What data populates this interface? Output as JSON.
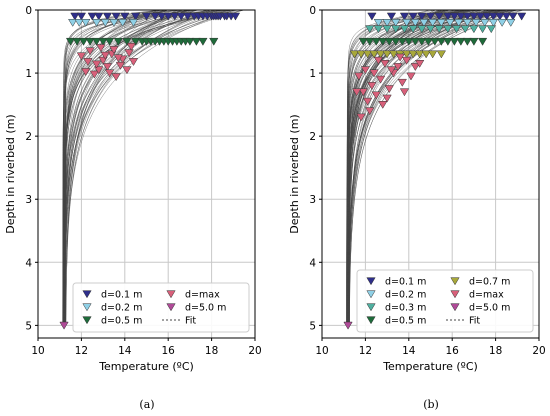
{
  "colors": {
    "d0.1": "#2e2e8a",
    "d0.2": "#8fd0e6",
    "d0.3": "#4fb0a0",
    "d0.5": "#1e6b3a",
    "d0.7": "#a8a83a",
    "dmax": "#d8607a",
    "d5.0": "#b04a98",
    "fit": "#444444",
    "grid": "#c8c8c8"
  },
  "chart_data": [
    {
      "type": "scatter",
      "panel": "(a)",
      "xlabel": "Temperature (ºC)",
      "ylabel": "Depth in riverbed (m)",
      "xlim": [
        10,
        20
      ],
      "ylim": [
        5.2,
        0
      ],
      "xticks": [
        "10",
        "12",
        "14",
        "16",
        "18",
        "20"
      ],
      "yticks": [
        "0",
        "1",
        "2",
        "3",
        "4",
        "5"
      ],
      "grid": true,
      "legend_position": "bottom-right",
      "fit": {
        "name": "Fit",
        "count": 70,
        "deep_temp": 11.2,
        "surface_range": [
          15.5,
          19.6
        ]
      },
      "series": [
        {
          "name": "d=0.1 m",
          "color_key": "d0.1",
          "depth": 0.1,
          "x": [
            11.7,
            12.0,
            12.5,
            12.8,
            13.2,
            13.6,
            14.0,
            14.5,
            15.0,
            15.4,
            15.7,
            16.0,
            16.3,
            16.6,
            16.9,
            17.2,
            17.4,
            17.6,
            17.8,
            18.0,
            18.1,
            18.2,
            18.3,
            18.4,
            18.6,
            18.7,
            18.9,
            19.1
          ]
        },
        {
          "name": "d=0.2 m",
          "color_key": "d0.2",
          "depth": 0.2,
          "x": [
            11.6,
            11.9,
            12.2,
            12.7,
            13.1,
            13.5,
            13.9,
            14.4
          ]
        },
        {
          "name": "d=0.5 m",
          "color_key": "d0.5",
          "depth": 0.5,
          "x": [
            11.5,
            11.8,
            12.1,
            12.4,
            12.7,
            13.0,
            13.3,
            13.7,
            14.1,
            14.5,
            14.8,
            15.0,
            15.2,
            15.4,
            15.6,
            15.8,
            16.0,
            16.2,
            16.4,
            16.6,
            16.8,
            17.0,
            17.3,
            17.6,
            18.1
          ]
        },
        {
          "name": "d=max",
          "color_key": "dmax",
          "points": [
            [
              12.0,
              0.73
            ],
            [
              12.3,
              0.82
            ],
            [
              12.6,
              1.02
            ],
            [
              13.0,
              0.8
            ],
            [
              12.8,
              0.95
            ],
            [
              13.4,
              0.7
            ],
            [
              13.2,
              0.9
            ],
            [
              13.6,
              1.06
            ],
            [
              13.5,
              0.63
            ],
            [
              13.9,
              0.78
            ],
            [
              14.2,
              0.68
            ],
            [
              12.9,
              0.6
            ],
            [
              14.1,
              0.95
            ],
            [
              13.8,
              0.88
            ],
            [
              12.4,
              0.65
            ],
            [
              14.3,
              0.58
            ],
            [
              13.1,
              0.72
            ],
            [
              12.7,
              0.86
            ],
            [
              13.7,
              0.76
            ],
            [
              12.2,
              0.98
            ],
            [
              14.4,
              0.82
            ],
            [
              13.3,
              1.0
            ]
          ]
        },
        {
          "name": "d=5.0 m",
          "color_key": "d5.0",
          "points": [
            [
              11.2,
              5.0
            ]
          ]
        }
      ]
    },
    {
      "type": "scatter",
      "panel": "(b)",
      "xlabel": "Temperature (ºC)",
      "ylabel": "Depth in riverbed (m)",
      "xlim": [
        10,
        20
      ],
      "ylim": [
        5.2,
        0
      ],
      "xticks": [
        "10",
        "12",
        "14",
        "16",
        "18",
        "20"
      ],
      "yticks": [
        "0",
        "1",
        "2",
        "3",
        "4",
        "5"
      ],
      "grid": true,
      "legend_position": "bottom-right",
      "fit": {
        "name": "Fit",
        "count": 90,
        "deep_temp": 11.2,
        "surface_range": [
          15.0,
          19.6
        ]
      },
      "series": [
        {
          "name": "d=0.1 m",
          "color_key": "d0.1",
          "depth": 0.1,
          "x": [
            12.3,
            13.2,
            13.8,
            14.2,
            14.6,
            15.0,
            15.4,
            15.8,
            16.1,
            16.4,
            16.7,
            17.0,
            17.3,
            17.6,
            17.9,
            18.2,
            18.5,
            18.8,
            19.2
          ]
        },
        {
          "name": "d=0.2 m",
          "color_key": "d0.2",
          "depth": 0.2,
          "x": [
            12.6,
            13.0,
            13.4,
            13.9,
            14.3,
            14.7,
            15.1,
            15.5,
            15.9,
            16.3,
            16.7,
            17.1,
            17.5,
            17.9,
            18.3,
            18.7
          ]
        },
        {
          "name": "d=0.3 m",
          "color_key": "d0.3",
          "depth": 0.3,
          "x": [
            12.2,
            12.6,
            13.0,
            13.4,
            13.8,
            14.2,
            14.6,
            15.0,
            15.4,
            15.8,
            16.2,
            16.6,
            17.0,
            17.4,
            17.8
          ]
        },
        {
          "name": "d=0.5 m",
          "color_key": "d0.5",
          "depth": 0.5,
          "x": [
            11.9,
            12.2,
            12.5,
            12.8,
            13.1,
            13.4,
            13.7,
            14.0,
            14.3,
            14.6,
            14.9,
            15.2,
            15.5,
            15.8,
            16.1,
            16.4,
            16.7,
            17.0,
            17.4
          ]
        },
        {
          "name": "d=0.7 m",
          "color_key": "d0.7",
          "depth": 0.7,
          "x": [
            11.5,
            11.8,
            12.1,
            12.4,
            12.7,
            13.0,
            13.3,
            13.6,
            13.9,
            14.2,
            14.5,
            14.8,
            15.1,
            15.5
          ]
        },
        {
          "name": "d=max",
          "color_key": "dmax",
          "points": [
            [
              11.7,
              1.05
            ],
            [
              11.9,
              1.3
            ],
            [
              12.1,
              1.45
            ],
            [
              12.3,
              1.2
            ],
            [
              12.0,
              0.95
            ],
            [
              12.5,
              1.35
            ],
            [
              12.7,
              1.1
            ],
            [
              12.9,
              0.85
            ],
            [
              13.1,
              1.25
            ],
            [
              13.3,
              1.0
            ],
            [
              13.5,
              0.9
            ],
            [
              13.7,
              1.15
            ],
            [
              13.9,
              0.8
            ],
            [
              14.1,
              1.05
            ],
            [
              14.3,
              0.9
            ],
            [
              12.2,
              1.6
            ],
            [
              11.8,
              1.7
            ],
            [
              12.6,
              0.8
            ],
            [
              13.0,
              1.4
            ],
            [
              13.6,
              0.75
            ],
            [
              14.5,
              0.85
            ],
            [
              12.4,
              1.0
            ],
            [
              13.2,
              0.95
            ],
            [
              12.8,
              1.5
            ],
            [
              13.8,
              1.3
            ],
            [
              11.6,
              1.3
            ]
          ]
        },
        {
          "name": "d=5.0 m",
          "color_key": "d5.0",
          "points": [
            [
              11.2,
              5.0
            ]
          ]
        }
      ]
    }
  ]
}
